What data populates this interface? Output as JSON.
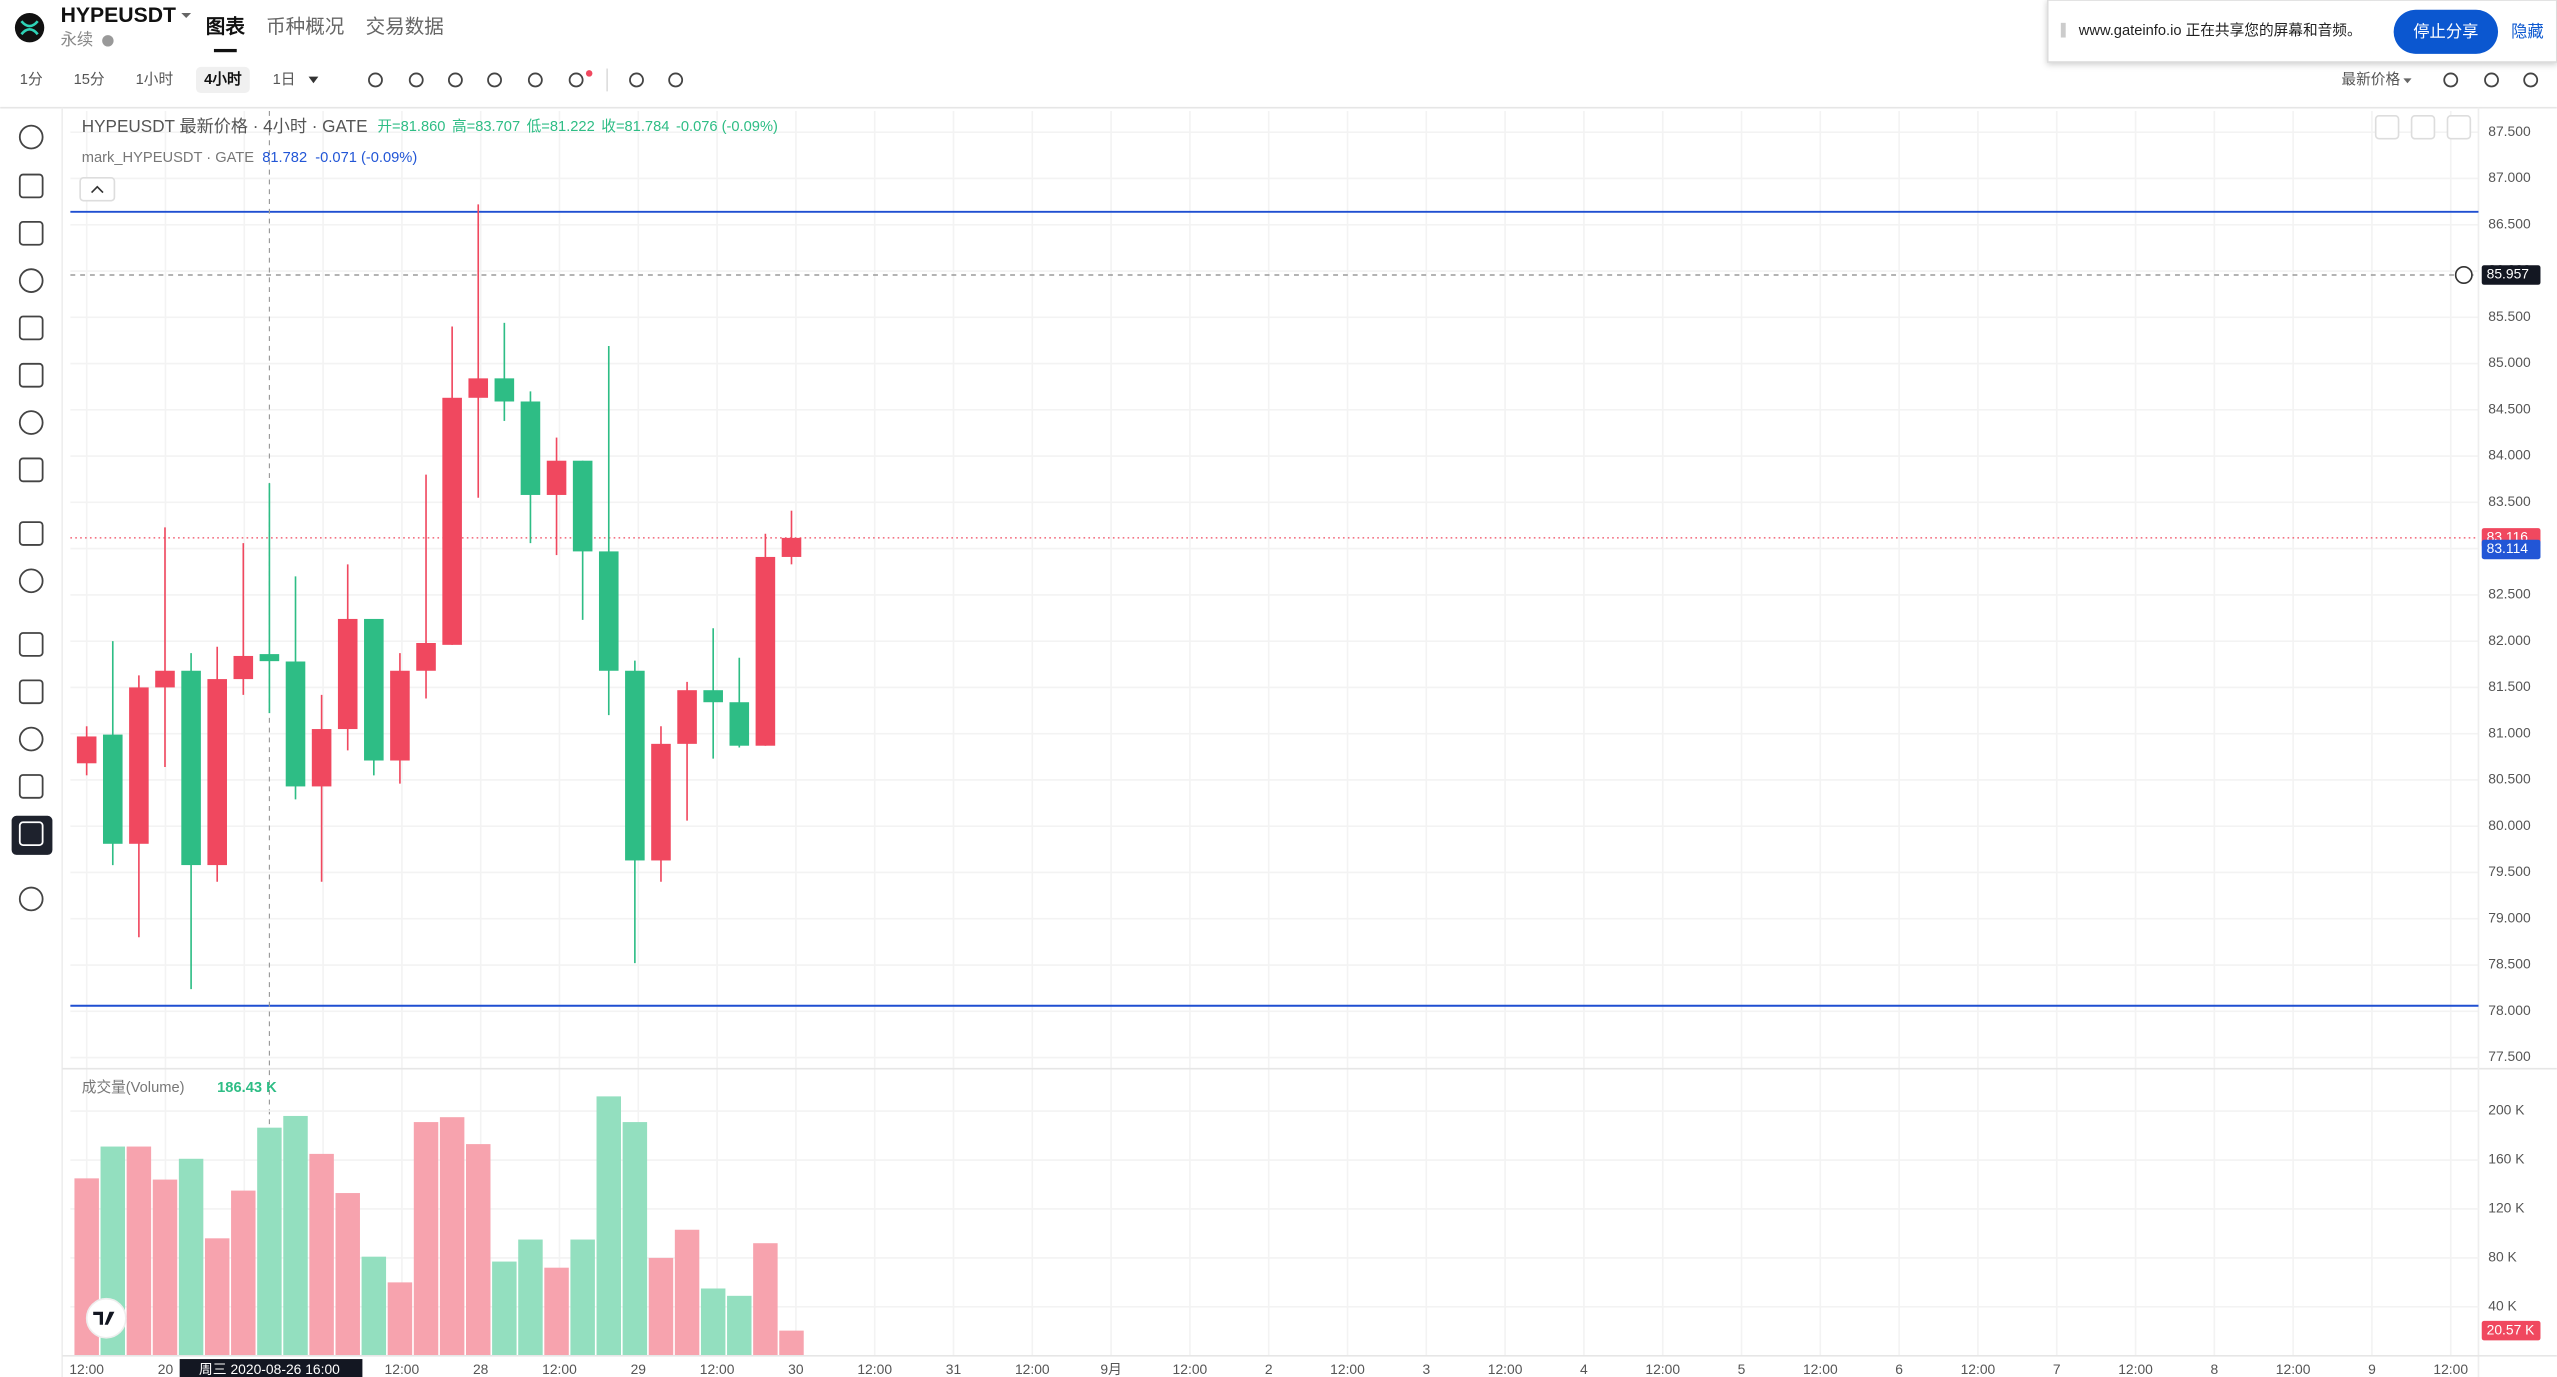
{
  "header": {
    "symbol": "HYPEUSDT",
    "subtitle": "永续",
    "tabs": [
      "图表",
      "币种概况",
      "交易数据"
    ]
  },
  "toolbar": {
    "intervals": [
      "1分",
      "15分",
      "1小时",
      "4小时",
      "1日"
    ],
    "price_mode": "最新价格"
  },
  "share_banner": {
    "text": "www.gateinfo.io 正在共享您的屏幕和音频。",
    "stop": "停止分享",
    "hide": "隐藏"
  },
  "chart_data": [
    {
      "type": "candlestick",
      "title": "HYPEUSDT 最新价格 · 4小时 · GATE",
      "legend_texts": [
        "开=81.860",
        "高=83.707",
        "低=81.222",
        "收=81.784",
        "-0.076 (-0.09%)"
      ],
      "mark_title": "mark_HYPEUSDT · GATE",
      "mark_texts": [
        "81.782",
        "-0.071 (-0.09%)"
      ],
      "open": [
        80.68,
        80.99,
        79.81,
        81.5,
        81.68,
        79.58,
        81.59,
        81.86,
        81.78,
        80.43,
        81.05,
        82.24,
        80.71,
        81.68,
        81.96,
        84.63,
        84.84,
        84.59,
        83.58,
        83.95,
        82.97,
        81.68,
        79.63,
        80.89,
        81.47,
        81.34,
        80.87,
        82.91
      ],
      "high": [
        81.08,
        82.0,
        81.63,
        83.23,
        81.87,
        81.94,
        83.06,
        83.707,
        82.7,
        81.42,
        82.83,
        82.24,
        81.87,
        83.8,
        85.4,
        86.72,
        85.44,
        84.7,
        84.2,
        83.95,
        85.19,
        81.79,
        81.08,
        81.56,
        82.14,
        81.82,
        83.16,
        83.41
      ],
      "low": [
        80.55,
        79.58,
        78.8,
        80.64,
        78.24,
        79.4,
        81.42,
        81.222,
        80.29,
        79.4,
        80.82,
        80.55,
        80.46,
        81.38,
        81.96,
        83.55,
        84.38,
        83.06,
        82.93,
        82.23,
        81.2,
        78.52,
        79.4,
        80.06,
        80.73,
        80.85,
        80.87,
        82.83
      ],
      "close": [
        80.97,
        79.81,
        81.5,
        81.68,
        79.58,
        81.59,
        81.84,
        81.784,
        80.43,
        81.05,
        82.24,
        80.71,
        81.68,
        81.98,
        84.63,
        84.84,
        84.59,
        83.58,
        83.95,
        82.97,
        81.68,
        79.63,
        80.89,
        81.47,
        81.34,
        80.87,
        82.91,
        83.116
      ],
      "up_color": "#f0485f",
      "down_color": "#2ebd85",
      "ylim": [
        77.38,
        87.73
      ],
      "yticks": [
        {
          "value": 77.5,
          "label": "77.500"
        },
        {
          "value": 78,
          "label": "78.000"
        },
        {
          "value": 78.5,
          "label": "78.500"
        },
        {
          "value": 79,
          "label": "79.000"
        },
        {
          "value": 79.5,
          "label": "79.500"
        },
        {
          "value": 80,
          "label": "80.000"
        },
        {
          "value": 80.5,
          "label": "80.500"
        },
        {
          "value": 81,
          "label": "81.000"
        },
        {
          "value": 81.5,
          "label": "81.500"
        },
        {
          "value": 82,
          "label": "82.000"
        },
        {
          "value": 82.5,
          "label": "82.500"
        },
        {
          "value": 83,
          "label": "83.000"
        },
        {
          "value": 83.5,
          "label": "83.500"
        },
        {
          "value": 84,
          "label": "84.000"
        },
        {
          "value": 84.5,
          "label": "84.500"
        },
        {
          "value": 85,
          "label": "85.000"
        },
        {
          "value": 85.5,
          "label": "85.500"
        },
        {
          "value": 86,
          "label": "86.000"
        },
        {
          "value": 86.5,
          "label": "86.500"
        },
        {
          "value": 87,
          "label": "87.000"
        },
        {
          "value": 87.5,
          "label": "87.500"
        }
      ],
      "hlines": [
        {
          "value": 86.64,
          "color": "#1f4fd1"
        },
        {
          "value": 78.06,
          "color": "#1f4fd1"
        }
      ],
      "price_labels": [
        {
          "value": 85.957,
          "label": "85.957",
          "color": "#131722"
        },
        {
          "value": 83.116,
          "label": "83.116",
          "color": "#f0485f"
        },
        {
          "value": 83.114,
          "label": "83.114",
          "color": "#2256d6"
        }
      ],
      "x_labels": [
        "12:00",
        "20",
        null,
        null,
        "12:00",
        "28",
        "12:00",
        "29",
        "12:00",
        "30",
        "12:00",
        "31",
        "12:00",
        "9月",
        "12:00",
        "2",
        "12:00",
        "3",
        "12:00",
        "4",
        "12:00",
        "5",
        "12:00",
        "6",
        "12:00",
        "7",
        "12:00",
        "8",
        "12:00",
        "9",
        "12:00"
      ],
      "crosshair_label": "周三 2020-08-26  16:00",
      "grid": true
    },
    {
      "type": "bar",
      "title": "成交量(Volume)",
      "values": [
        145,
        171,
        171,
        144,
        161,
        96,
        135,
        186.43,
        196,
        165,
        133,
        81,
        60,
        191,
        195,
        173,
        77,
        95,
        72,
        95,
        212,
        191,
        80,
        103,
        55,
        49,
        92,
        20.57
      ],
      "value_labels": [
        null,
        null,
        null,
        null,
        null,
        null,
        null,
        "186.43 K",
        null,
        null,
        null,
        null,
        null,
        null,
        null,
        null,
        null,
        null,
        null,
        null,
        null,
        null,
        null,
        null,
        null,
        null,
        null,
        "20.57 K"
      ],
      "up_color": "#f7a3ae",
      "down_color": "#93dfbf",
      "ylim": [
        0,
        232
      ],
      "yticks": [
        {
          "value": 40,
          "label": "40 K"
        },
        {
          "value": 80,
          "label": "80 K"
        },
        {
          "value": 120,
          "label": "120 K"
        },
        {
          "value": 160,
          "label": "160 K"
        },
        {
          "value": 200,
          "label": "200 K"
        }
      ]
    }
  ]
}
